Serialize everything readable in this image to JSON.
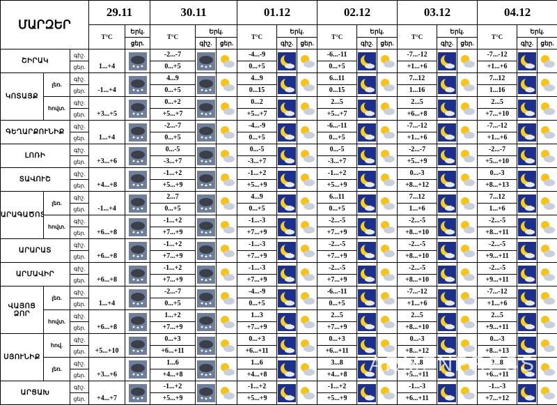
{
  "header": {
    "regions_label": "ՄԱՐԶԵՐ",
    "dates": [
      "29.11",
      "30.11",
      "01.12",
      "02.12",
      "03.12",
      "04.12"
    ],
    "temp_label": "T°C",
    "sky_label": "Երկ.",
    "night_label": "գիշ.",
    "day_label": "ցեր."
  },
  "regions": [
    {
      "name": "ՇԻՐԱԿ",
      "zones": [
        {
          "first_day": "1...+4",
          "night": [
            "-2...-7",
            "-4...-9",
            "-6...-11",
            "-7...-12",
            "-7...-12"
          ],
          "day": [
            "0...+5",
            "0...+5",
            "0...+5",
            "+1...+6",
            "+1...+6"
          ]
        }
      ]
    },
    {
      "name": "ԿՈՏԱՅՔ",
      "zones": [
        {
          "zone": "լեռ.",
          "first_day": "-1...+4",
          "night": [
            "4...9",
            "4...9",
            "6...11",
            "7...12",
            "7...12"
          ],
          "day": [
            "0...+5",
            "0...15",
            "0...15",
            "1...16",
            "1...16"
          ]
        },
        {
          "zone": "հովտ.",
          "first_day": "+3...+5",
          "night": [
            "0...+2",
            "0...2",
            "2...5",
            "2...5",
            "2...5"
          ],
          "day": [
            "+5...+7",
            "+5...+7",
            "+5...+7",
            "+6...+8",
            "+7...+10"
          ]
        }
      ]
    },
    {
      "name": "ԳԵՂԱՐՔՈՒՆԻՔ",
      "zones": [
        {
          "first_day": "1...+4",
          "night": [
            "-2...-7",
            "-4...-9",
            "-6...-11",
            "-7...-12",
            "-7...-12"
          ],
          "day": [
            "0...+5",
            "0...+5",
            "0...+5",
            "+1...+6",
            "+1...+6"
          ]
        }
      ]
    },
    {
      "name": "ԼՈՌԻ",
      "zones": [
        {
          "first_day": "+3...+6",
          "night": [
            "0...-5",
            "0...-5",
            "0...-5",
            "-2...-7",
            "-2...-7"
          ],
          "day": [
            "-3...+7",
            "-3...+7",
            "-3...+7",
            "+5...+9",
            "+5...+10"
          ]
        }
      ]
    },
    {
      "name": "ՏԱՎՈՒՇ",
      "zones": [
        {
          "first_day": "+4...+8",
          "night": [
            "-1...+2",
            "-1...+2",
            "-1...+2",
            "0...-3",
            "0...-3"
          ],
          "day": [
            "+5...+9",
            "+5...+9",
            "+5...+9",
            "+8...+12",
            "+8...+13"
          ]
        }
      ]
    },
    {
      "name": "ԱՐԱԳԱԾՈՏՆ",
      "zones": [
        {
          "zone": "լեռ.",
          "first_day": "-1...+4",
          "night": [
            "2...7",
            "4...9",
            "6...11",
            "7...12",
            "7...12"
          ],
          "day": [
            "0...+5",
            "0...+5",
            "0...+5",
            "1...+6",
            "1...+6"
          ]
        },
        {
          "zone": "հովտ.",
          "first_day": "+6...+8",
          "night": [
            "-1...+2",
            "-1...-3",
            "-2...-5",
            "-2...-5",
            "-2...-5"
          ],
          "day": [
            "+7...+9",
            "+7...+9",
            "+7...+9",
            "+8...+10",
            "+8...+11"
          ]
        }
      ]
    },
    {
      "name": "ԱՐԱՐԱՏ",
      "zones": [
        {
          "first_day": "+6...+8",
          "night": [
            "-1...+2",
            "-1...-3",
            "-2...-5",
            "-2...-5",
            "-2...-5"
          ],
          "day": [
            "+7...+9",
            "+7...+9",
            "+7...+9",
            "+8...+10",
            "+9...+11"
          ]
        }
      ]
    },
    {
      "name": "ԱՐՄԱՎԻՐ",
      "zones": [
        {
          "first_day": "+6...+8",
          "night": [
            "-1...+2",
            "-1...-3",
            "-2...-5",
            "-2...-5",
            "-2...-5"
          ],
          "day": [
            "+7...+9",
            "+7...+9",
            "+7...+9",
            "+8...+10",
            "+9...+11"
          ]
        }
      ]
    },
    {
      "name": "ՎԱՅՈՑ ՁՈՐ",
      "zones": [
        {
          "zone": "լեռ.",
          "first_day": "1...+4",
          "night": [
            "-2...-7",
            "-4...-9",
            "-6...-11",
            "-7...-12",
            "-7...-12"
          ],
          "day": [
            "0...+5",
            "0...+5",
            "0...+5",
            "+1...+6",
            "+1...+6"
          ]
        },
        {
          "zone": "հովտ.",
          "first_day": "+6...+8",
          "night": [
            "1...+2",
            "1...3",
            "2...5",
            "2...5",
            "2...5"
          ],
          "day": [
            "+7...+9",
            "+7...+9",
            "+7...+9",
            "+8...+10",
            "+9...+11"
          ]
        }
      ]
    },
    {
      "name": "ՍՅՈՒՆԻՔ",
      "zones": [
        {
          "zone": "հով.",
          "first_day": "+5...+10",
          "night": [
            "0...+3",
            "0...+3",
            "0...+3",
            "0...-3",
            "0...-3"
          ],
          "day": [
            "+6...+11",
            "+6...+11",
            "+6...+11",
            "+8...+12",
            "+8...+13"
          ]
        },
        {
          "zone": "լեռ.",
          "first_day": "+3...+6",
          "night": [
            "1...6",
            "1...6",
            "3...8",
            "3...8",
            "3...8"
          ],
          "day": [
            "+4...+8",
            "+4...+8",
            "+4...+8",
            "+5...+11",
            "+6...+11"
          ]
        }
      ]
    },
    {
      "name": "ԱՐՑԱԽ",
      "zones": [
        {
          "first_day": "+4...+7",
          "night": [
            "-1...+2",
            "-1...+2",
            "-1...+2",
            "-1...-3",
            "-1...-3"
          ],
          "day": [
            "+5...+9",
            "+5...+9",
            "+5...+9",
            "+6...+11",
            "+7...+12"
          ]
        }
      ]
    }
  ],
  "watermark": "ARMENPRESS"
}
